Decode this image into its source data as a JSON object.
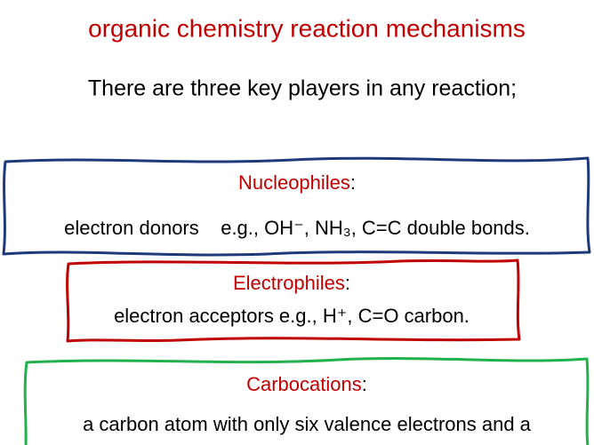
{
  "title": "organic chemistry reaction mechanisms",
  "intro": "There are three key players in any reaction;",
  "boxes": [
    {
      "term": "Nucleophiles",
      "suffix": ":",
      "text": "electron donors    e.g., OH⁻, NH₃, C=C double bonds."
    },
    {
      "term": "Electrophiles",
      "suffix": ":",
      "text": "electron acceptors e.g., H⁺, C=O carbon."
    },
    {
      "term": "Carbocations",
      "suffix": ":",
      "text": "a carbon atom with only six valence electrons and a"
    }
  ]
}
